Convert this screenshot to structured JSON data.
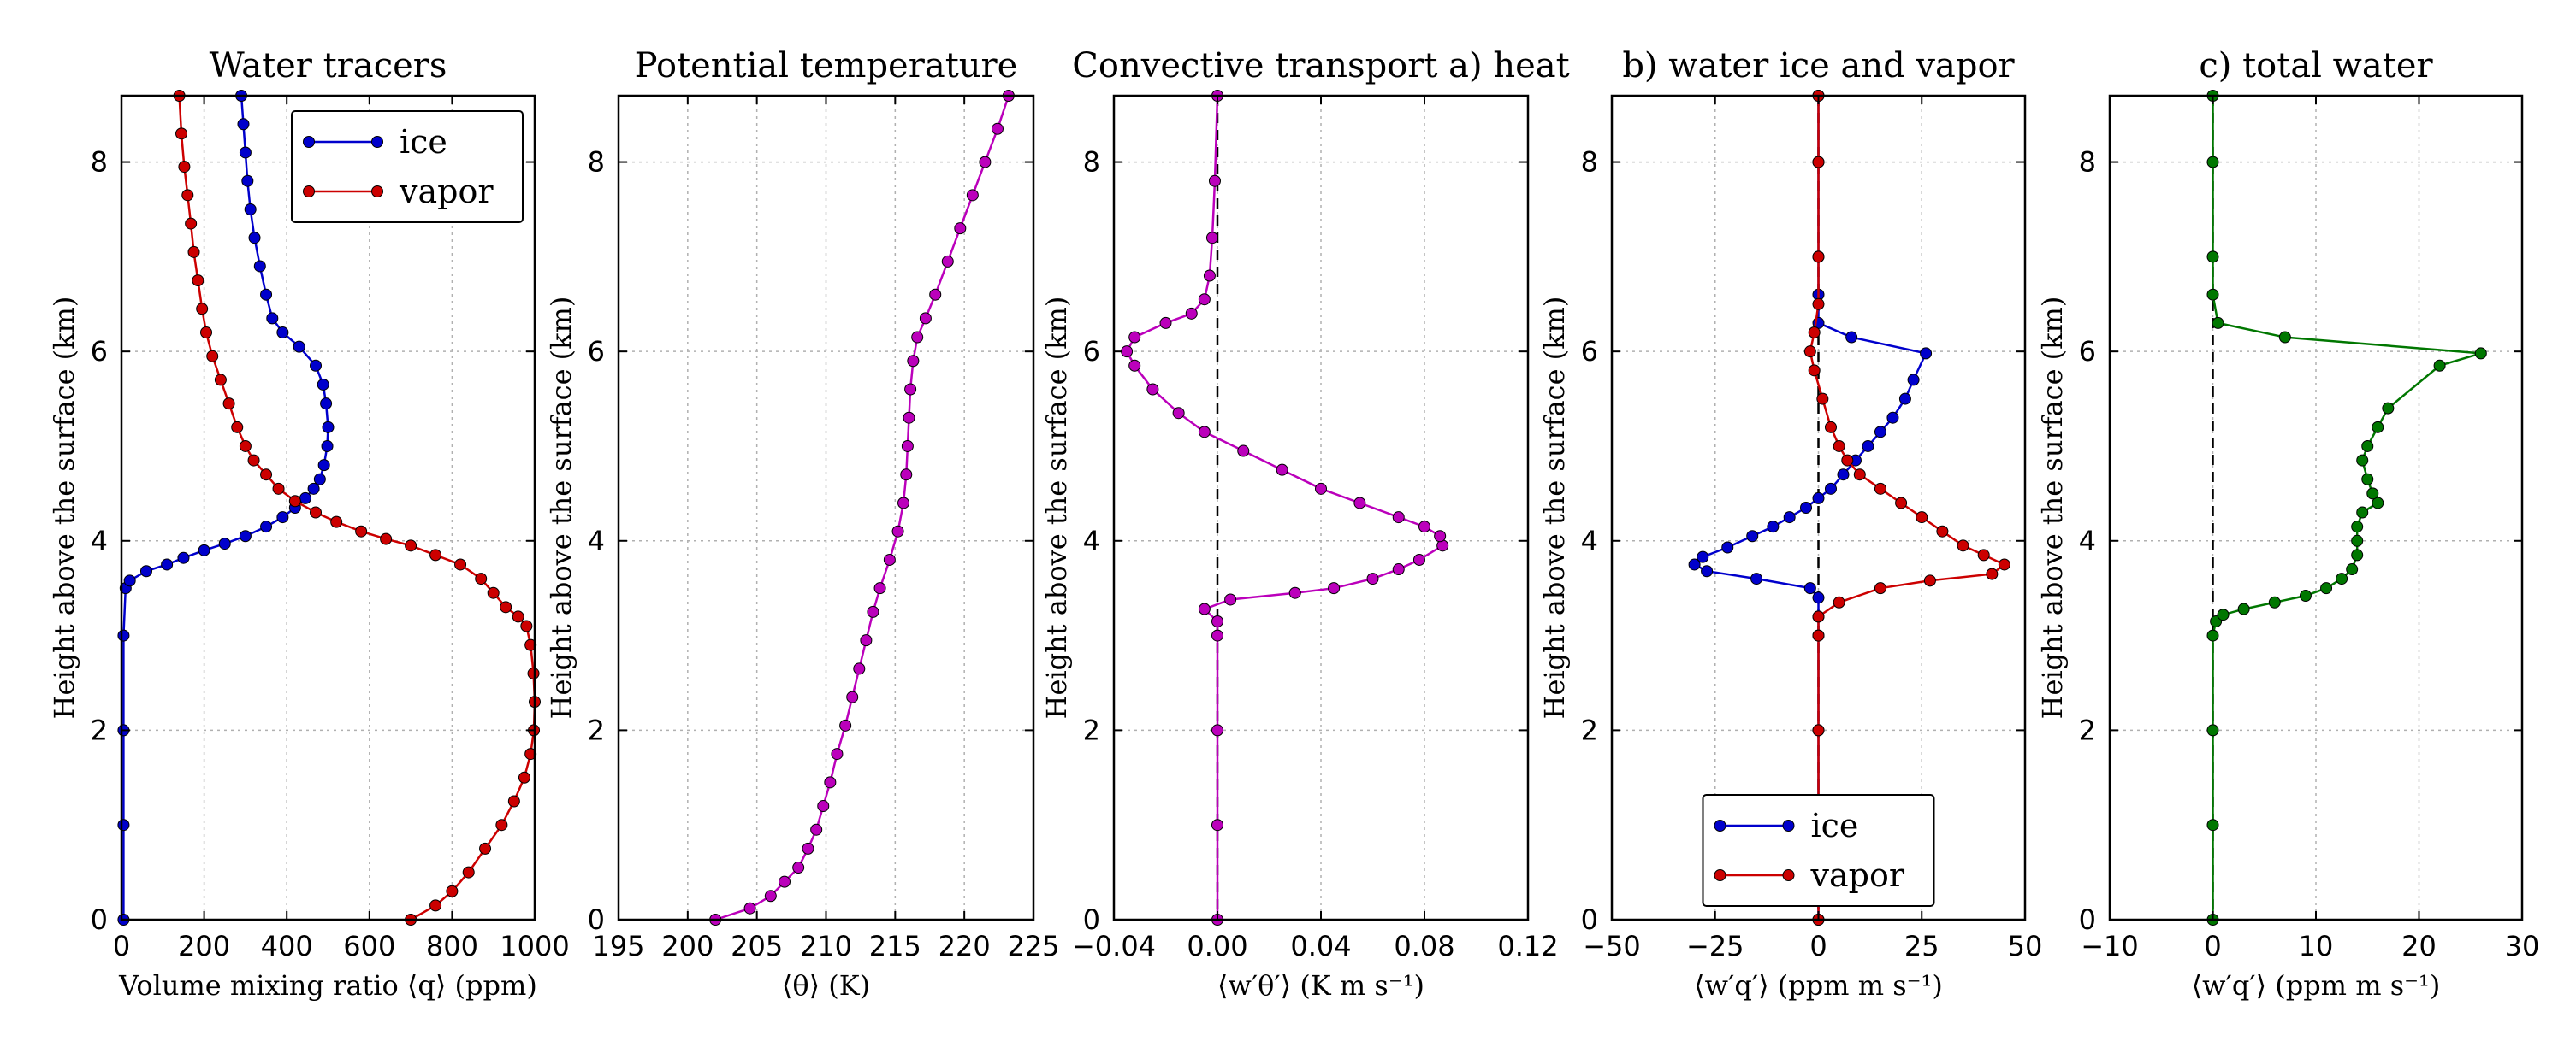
{
  "chart_data": [
    {
      "type": "line",
      "title": "Water tracers",
      "xlabel": "Volume mixing ratio ⟨q⟩ (ppm)",
      "ylabel": "Height above the surface (km)",
      "xlim": [
        0,
        1000
      ],
      "ylim": [
        0,
        8.7
      ],
      "xticks": [
        0,
        200,
        400,
        600,
        800,
        1000
      ],
      "xtick_labels": [
        "0",
        "200",
        "400",
        "600",
        "800",
        "1000"
      ],
      "yticks": [
        0,
        2,
        4,
        6,
        8
      ],
      "ytick_labels": [
        "0",
        "2",
        "4",
        "6",
        "8"
      ],
      "grid": true,
      "legend": "top-right",
      "series": [
        {
          "name": "ice",
          "color": "#0000cc",
          "points": [
            [
              5,
              0
            ],
            [
              5,
              1
            ],
            [
              5,
              2
            ],
            [
              5,
              3
            ],
            [
              10,
              3.5
            ],
            [
              20,
              3.58
            ],
            [
              60,
              3.68
            ],
            [
              110,
              3.75
            ],
            [
              150,
              3.82
            ],
            [
              200,
              3.9
            ],
            [
              250,
              3.97
            ],
            [
              300,
              4.05
            ],
            [
              350,
              4.15
            ],
            [
              390,
              4.25
            ],
            [
              420,
              4.35
            ],
            [
              445,
              4.45
            ],
            [
              465,
              4.55
            ],
            [
              480,
              4.65
            ],
            [
              490,
              4.8
            ],
            [
              498,
              5
            ],
            [
              500,
              5.2
            ],
            [
              495,
              5.45
            ],
            [
              488,
              5.65
            ],
            [
              470,
              5.85
            ],
            [
              430,
              6.05
            ],
            [
              390,
              6.2
            ],
            [
              365,
              6.35
            ],
            [
              350,
              6.6
            ],
            [
              335,
              6.9
            ],
            [
              322,
              7.2
            ],
            [
              312,
              7.5
            ],
            [
              305,
              7.8
            ],
            [
              300,
              8.1
            ],
            [
              295,
              8.4
            ],
            [
              290,
              8.7
            ]
          ]
        },
        {
          "name": "vapor",
          "color": "#cc0000",
          "points": [
            [
              700,
              0
            ],
            [
              760,
              0.15
            ],
            [
              800,
              0.3
            ],
            [
              840,
              0.5
            ],
            [
              880,
              0.75
            ],
            [
              920,
              1
            ],
            [
              950,
              1.25
            ],
            [
              975,
              1.5
            ],
            [
              990,
              1.75
            ],
            [
              998,
              2
            ],
            [
              1000,
              2.3
            ],
            [
              997,
              2.6
            ],
            [
              990,
              2.9
            ],
            [
              980,
              3.1
            ],
            [
              960,
              3.2
            ],
            [
              930,
              3.3
            ],
            [
              900,
              3.45
            ],
            [
              870,
              3.6
            ],
            [
              820,
              3.75
            ],
            [
              760,
              3.85
            ],
            [
              700,
              3.95
            ],
            [
              640,
              4.02
            ],
            [
              580,
              4.1
            ],
            [
              520,
              4.2
            ],
            [
              470,
              4.3
            ],
            [
              420,
              4.42
            ],
            [
              380,
              4.55
            ],
            [
              350,
              4.7
            ],
            [
              320,
              4.85
            ],
            [
              300,
              5
            ],
            [
              280,
              5.2
            ],
            [
              260,
              5.45
            ],
            [
              240,
              5.7
            ],
            [
              220,
              5.95
            ],
            [
              205,
              6.2
            ],
            [
              195,
              6.45
            ],
            [
              185,
              6.75
            ],
            [
              175,
              7.05
            ],
            [
              168,
              7.35
            ],
            [
              160,
              7.65
            ],
            [
              152,
              7.95
            ],
            [
              145,
              8.3
            ],
            [
              140,
              8.7
            ]
          ]
        }
      ]
    },
    {
      "type": "line",
      "title": "Potential temperature",
      "xlabel": "⟨θ⟩ (K)",
      "ylabel": "Height above the surface (km)",
      "xlim": [
        195,
        225
      ],
      "ylim": [
        0,
        8.7
      ],
      "xticks": [
        195,
        200,
        205,
        210,
        215,
        220,
        225
      ],
      "xtick_labels": [
        "195",
        "200",
        "205",
        "210",
        "215",
        "220",
        "225"
      ],
      "yticks": [
        0,
        2,
        4,
        6,
        8
      ],
      "ytick_labels": [
        "0",
        "2",
        "4",
        "6",
        "8"
      ],
      "grid": true,
      "series": [
        {
          "name": "",
          "color": "#bb00bb",
          "points": [
            [
              202,
              0
            ],
            [
              204.5,
              0.12
            ],
            [
              206,
              0.25
            ],
            [
              207,
              0.4
            ],
            [
              208,
              0.55
            ],
            [
              208.7,
              0.75
            ],
            [
              209.3,
              0.95
            ],
            [
              209.8,
              1.2
            ],
            [
              210.3,
              1.45
            ],
            [
              210.8,
              1.75
            ],
            [
              211.4,
              2.05
            ],
            [
              211.9,
              2.35
            ],
            [
              212.4,
              2.65
            ],
            [
              212.9,
              2.95
            ],
            [
              213.4,
              3.25
            ],
            [
              213.9,
              3.5
            ],
            [
              214.6,
              3.8
            ],
            [
              215.2,
              4.1
            ],
            [
              215.6,
              4.4
            ],
            [
              215.8,
              4.7
            ],
            [
              215.9,
              5
            ],
            [
              216,
              5.3
            ],
            [
              216.1,
              5.6
            ],
            [
              216.3,
              5.9
            ],
            [
              216.6,
              6.15
            ],
            [
              217.2,
              6.35
            ],
            [
              217.9,
              6.6
            ],
            [
              218.8,
              6.95
            ],
            [
              219.7,
              7.3
            ],
            [
              220.6,
              7.65
            ],
            [
              221.5,
              8
            ],
            [
              222.4,
              8.35
            ],
            [
              223.2,
              8.7
            ]
          ]
        }
      ]
    },
    {
      "type": "line",
      "title": "Convective transport a) heat",
      "xlabel": "⟨w′θ′⟩ (K m s⁻¹)",
      "ylabel": "Height above the surface (km)",
      "xlim": [
        -0.04,
        0.12
      ],
      "ylim": [
        0,
        8.7
      ],
      "xticks": [
        -0.04,
        0,
        0.04,
        0.08,
        0.12
      ],
      "xtick_labels": [
        "−0.04",
        "0.00",
        "0.04",
        "0.08",
        "0.12"
      ],
      "yticks": [
        0,
        2,
        4,
        6,
        8
      ],
      "ytick_labels": [
        "0",
        "2",
        "4",
        "6",
        "8"
      ],
      "grid": true,
      "reference_line_x": 0,
      "series": [
        {
          "name": "",
          "color": "#bb00bb",
          "points": [
            [
              0,
              0
            ],
            [
              0,
              1
            ],
            [
              0,
              2
            ],
            [
              0,
              3
            ],
            [
              0,
              3.15
            ],
            [
              -0.005,
              3.28
            ],
            [
              0.005,
              3.38
            ],
            [
              0.03,
              3.45
            ],
            [
              0.045,
              3.5
            ],
            [
              0.06,
              3.6
            ],
            [
              0.07,
              3.7
            ],
            [
              0.078,
              3.8
            ],
            [
              0.087,
              3.95
            ],
            [
              0.086,
              4.05
            ],
            [
              0.08,
              4.15
            ],
            [
              0.07,
              4.25
            ],
            [
              0.055,
              4.4
            ],
            [
              0.04,
              4.55
            ],
            [
              0.025,
              4.75
            ],
            [
              0.01,
              4.95
            ],
            [
              -0.005,
              5.15
            ],
            [
              -0.015,
              5.35
            ],
            [
              -0.025,
              5.6
            ],
            [
              -0.032,
              5.85
            ],
            [
              -0.035,
              6.0
            ],
            [
              -0.032,
              6.15
            ],
            [
              -0.02,
              6.3
            ],
            [
              -0.01,
              6.4
            ],
            [
              -0.005,
              6.55
            ],
            [
              -0.003,
              6.8
            ],
            [
              -0.002,
              7.2
            ],
            [
              -0.001,
              7.8
            ],
            [
              0,
              8.7
            ]
          ]
        }
      ]
    },
    {
      "type": "line",
      "title": "b) water ice and vapor",
      "xlabel": "⟨w′q′⟩ (ppm m s⁻¹)",
      "ylabel": "Height above the surface (km)",
      "xlim": [
        -50,
        50
      ],
      "ylim": [
        0,
        8.7
      ],
      "xticks": [
        -50,
        -25,
        0,
        25,
        50
      ],
      "xtick_labels": [
        "−50",
        "−25",
        "0",
        "25",
        "50"
      ],
      "yticks": [
        0,
        2,
        4,
        6,
        8
      ],
      "ytick_labels": [
        "0",
        "2",
        "4",
        "6",
        "8"
      ],
      "grid": true,
      "legend": "bottom-center",
      "reference_line_x": 0,
      "series": [
        {
          "name": "ice",
          "color": "#0000cc",
          "points": [
            [
              0,
              0
            ],
            [
              0,
              1
            ],
            [
              0,
              2
            ],
            [
              0,
              3
            ],
            [
              0,
              3.2
            ],
            [
              0,
              3.4
            ],
            [
              -2,
              3.5
            ],
            [
              -15,
              3.6
            ],
            [
              -27,
              3.68
            ],
            [
              -30,
              3.75
            ],
            [
              -28,
              3.83
            ],
            [
              -22,
              3.93
            ],
            [
              -16,
              4.05
            ],
            [
              -11,
              4.15
            ],
            [
              -7,
              4.25
            ],
            [
              -3,
              4.35
            ],
            [
              0,
              4.45
            ],
            [
              3,
              4.55
            ],
            [
              6,
              4.7
            ],
            [
              9,
              4.85
            ],
            [
              12,
              5
            ],
            [
              15,
              5.15
            ],
            [
              18,
              5.3
            ],
            [
              21,
              5.5
            ],
            [
              23,
              5.7
            ],
            [
              26,
              5.98
            ],
            [
              8,
              6.15
            ],
            [
              0,
              6.3
            ],
            [
              0,
              6.6
            ],
            [
              0,
              7
            ],
            [
              0,
              8
            ],
            [
              0,
              8.7
            ]
          ]
        },
        {
          "name": "vapor",
          "color": "#cc0000",
          "points": [
            [
              0,
              0
            ],
            [
              0,
              1
            ],
            [
              0,
              2
            ],
            [
              0,
              3
            ],
            [
              0,
              3.2
            ],
            [
              5,
              3.35
            ],
            [
              15,
              3.5
            ],
            [
              27,
              3.58
            ],
            [
              42,
              3.65
            ],
            [
              45,
              3.75
            ],
            [
              40,
              3.85
            ],
            [
              35,
              3.95
            ],
            [
              30,
              4.1
            ],
            [
              25,
              4.25
            ],
            [
              20,
              4.4
            ],
            [
              15,
              4.55
            ],
            [
              10,
              4.7
            ],
            [
              7,
              4.85
            ],
            [
              5,
              5
            ],
            [
              3,
              5.2
            ],
            [
              1,
              5.5
            ],
            [
              -1,
              5.8
            ],
            [
              -2,
              6
            ],
            [
              -1,
              6.2
            ],
            [
              0,
              6.5
            ],
            [
              0,
              7
            ],
            [
              0,
              8
            ],
            [
              0,
              8.7
            ]
          ]
        }
      ]
    },
    {
      "type": "line",
      "title": "c) total water",
      "xlabel": "⟨w′q′⟩ (ppm m s⁻¹)",
      "ylabel": "Height above the surface (km)",
      "xlim": [
        -10,
        30
      ],
      "ylim": [
        0,
        8.7
      ],
      "xticks": [
        -10,
        0,
        10,
        20,
        30
      ],
      "xtick_labels": [
        "−10",
        "0",
        "10",
        "20",
        "30"
      ],
      "yticks": [
        0,
        2,
        4,
        6,
        8
      ],
      "ytick_labels": [
        "0",
        "2",
        "4",
        "6",
        "8"
      ],
      "grid": true,
      "reference_line_x": 0,
      "series": [
        {
          "name": "",
          "color": "#007700",
          "points": [
            [
              0,
              0
            ],
            [
              0,
              1
            ],
            [
              0,
              2
            ],
            [
              0,
              3
            ],
            [
              0.3,
              3.15
            ],
            [
              1,
              3.22
            ],
            [
              3,
              3.28
            ],
            [
              6,
              3.35
            ],
            [
              9,
              3.42
            ],
            [
              11,
              3.5
            ],
            [
              12.5,
              3.6
            ],
            [
              13.5,
              3.7
            ],
            [
              14,
              3.85
            ],
            [
              14,
              4
            ],
            [
              14,
              4.15
            ],
            [
              14.5,
              4.3
            ],
            [
              16,
              4.4
            ],
            [
              15.5,
              4.5
            ],
            [
              15,
              4.65
            ],
            [
              14.5,
              4.85
            ],
            [
              15,
              5
            ],
            [
              16,
              5.2
            ],
            [
              17,
              5.4
            ],
            [
              22,
              5.85
            ],
            [
              26,
              5.98
            ],
            [
              7,
              6.15
            ],
            [
              0.5,
              6.3
            ],
            [
              0,
              6.6
            ],
            [
              0,
              7
            ],
            [
              0,
              8
            ],
            [
              0,
              8.7
            ]
          ]
        }
      ]
    }
  ]
}
